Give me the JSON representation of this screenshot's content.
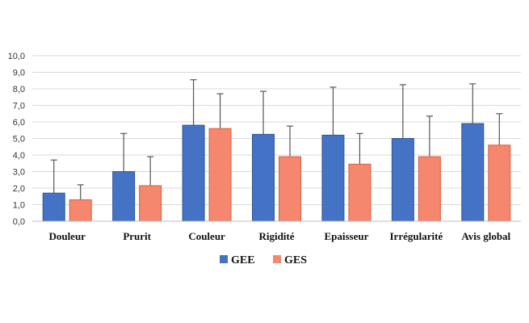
{
  "chart_data": {
    "type": "bar",
    "title": "",
    "xlabel": "",
    "ylabel": "",
    "ylim": [
      0,
      10
    ],
    "yticks": [
      "0,0",
      "1,0",
      "2,0",
      "3,0",
      "4,0",
      "5,0",
      "6,0",
      "7,0",
      "8,0",
      "9,0",
      "10,0"
    ],
    "grid": true,
    "legend_position": "bottom",
    "categories": [
      "Douleur",
      "Prurit",
      "Couleur",
      "Rigidité",
      "Epaisseur",
      "Irrégularité",
      "Avis global"
    ],
    "series": [
      {
        "name": "GEE",
        "color": "#4472C4",
        "values": [
          1.7,
          3.0,
          5.8,
          5.25,
          5.2,
          5.0,
          5.9
        ],
        "error_upper": [
          3.7,
          5.3,
          8.55,
          7.85,
          8.1,
          8.25,
          8.3
        ]
      },
      {
        "name": "GES",
        "color": "#F4876E",
        "values": [
          1.3,
          2.15,
          5.6,
          3.9,
          3.45,
          3.9,
          4.6
        ],
        "error_upper": [
          2.2,
          3.9,
          7.7,
          5.75,
          5.3,
          6.35,
          6.5
        ]
      }
    ]
  }
}
